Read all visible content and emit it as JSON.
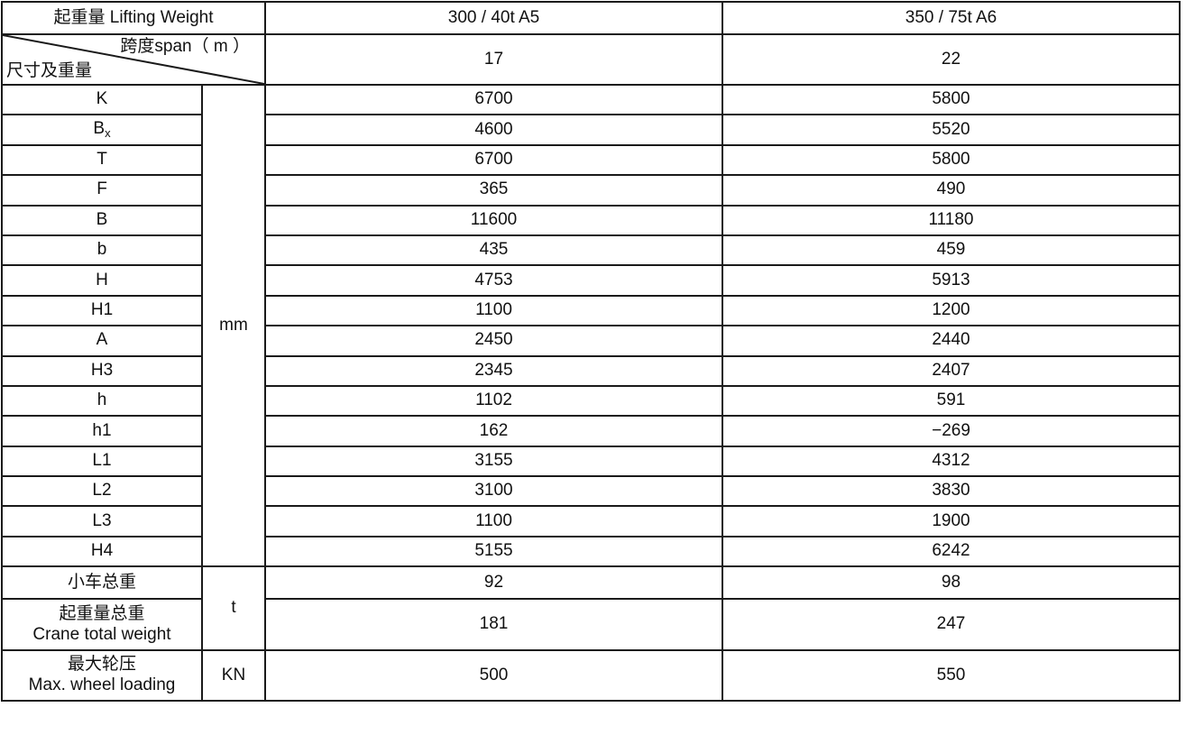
{
  "header": {
    "title": "起重量 Lifting Weight",
    "columns": [
      "300 / 40t  A5",
      "350 / 75t  A6"
    ]
  },
  "span_row": {
    "top_label": "跨度span（ m ）",
    "bottom_label": "尺寸及重量",
    "values": [
      "17",
      "22"
    ]
  },
  "dimension_unit": "mm",
  "dimensions": [
    {
      "label": "K",
      "values": [
        "6700",
        "5800"
      ]
    },
    {
      "label": "B",
      "sub": "x",
      "values": [
        "4600",
        "5520"
      ]
    },
    {
      "label": "T",
      "values": [
        "6700",
        "5800"
      ]
    },
    {
      "label": "F",
      "values": [
        "365",
        "490"
      ]
    },
    {
      "label": "B",
      "values": [
        "11600",
        "11180"
      ]
    },
    {
      "label": "b",
      "values": [
        "435",
        "459"
      ]
    },
    {
      "label": "H",
      "values": [
        "4753",
        "5913"
      ]
    },
    {
      "label": "H1",
      "values": [
        "1100",
        "1200"
      ]
    },
    {
      "label": "A",
      "values": [
        "2450",
        "2440"
      ]
    },
    {
      "label": "H3",
      "values": [
        "2345",
        "2407"
      ]
    },
    {
      "label": "h",
      "values": [
        "1102",
        "591"
      ]
    },
    {
      "label": "h1",
      "values": [
        "162",
        "−269"
      ]
    },
    {
      "label": "L1",
      "values": [
        "3155",
        "4312"
      ]
    },
    {
      "label": "L2",
      "values": [
        "3100",
        "3830"
      ]
    },
    {
      "label": "L3",
      "values": [
        "1100",
        "1900"
      ]
    },
    {
      "label": "H4",
      "values": [
        "5155",
        "6242"
      ]
    }
  ],
  "weights": {
    "unit": "t",
    "trolley": {
      "label": "小车总重",
      "values": [
        "92",
        "98"
      ]
    },
    "crane": {
      "label": "起重量总重",
      "label_en": "Crane total weight",
      "values": [
        "181",
        "247"
      ]
    }
  },
  "wheel": {
    "unit": "KN",
    "label": "最大轮压",
    "label_en": "Max.   wheel loading",
    "values": [
      "500",
      "550"
    ]
  }
}
